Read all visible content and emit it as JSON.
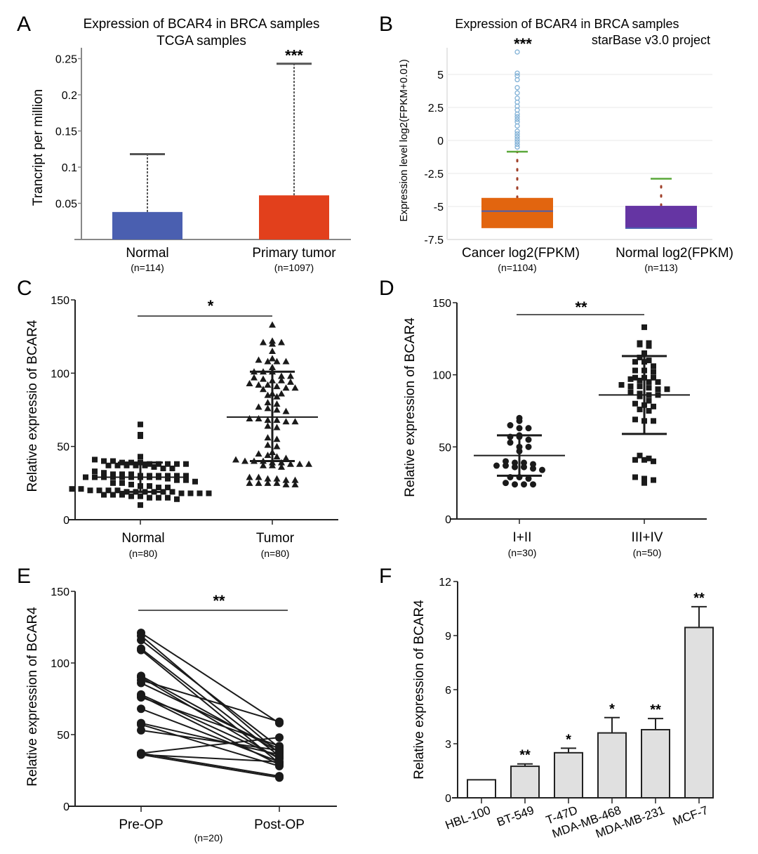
{
  "figure": {
    "panels": [
      "A",
      "B",
      "C",
      "D",
      "E",
      "F"
    ]
  },
  "chart_data": [
    {
      "panel": "A",
      "type": "bar",
      "title": "Expression of BCAR4 in BRCA samples",
      "subtitle": "TCGA samples",
      "xlabel": "",
      "ylabel": "Trancript per million",
      "ylim": [
        0,
        0.26
      ],
      "yticks": [
        "0.05",
        "0.1",
        "0.15",
        "0.2",
        "0.25"
      ],
      "ytick_values": [
        0.05,
        0.1,
        0.15,
        0.2,
        0.25
      ],
      "categories": [
        "Normal",
        "Primary tumor"
      ],
      "n_labels": [
        "(n=114)",
        "(n=1097)"
      ],
      "values": [
        0.038,
        0.061
      ],
      "whisker_top": [
        0.118,
        0.243
      ],
      "colors": [
        "#4a5fb0",
        "#e2401c"
      ],
      "significance": [
        "",
        "***"
      ],
      "grid": false
    },
    {
      "panel": "B",
      "type": "box",
      "title": "Expression of BCAR4 in BRCA samples",
      "subtitle": "starBase v3.0 project",
      "significance": "***",
      "ylabel": "Expression level log2(FPKM+0.01)",
      "ylim": [
        -7.5,
        7
      ],
      "yticks": [
        "5",
        "2.5",
        "0",
        "-2.5",
        "-5",
        "-7.5"
      ],
      "ytick_values": [
        5,
        2.5,
        0,
        -2.5,
        -5,
        -7.5
      ],
      "categories": [
        "Cancer log2(FPKM)",
        "Normal log2(FPKM)"
      ],
      "n_labels": [
        "(n=1104)",
        "(n=113)"
      ],
      "boxes": [
        {
          "q1": -6.64,
          "median": -5.35,
          "q3": -4.35,
          "whisker_low": -6.64,
          "whisker_high": -0.85,
          "color": "#e2650f",
          "outliers": [
            -0.5,
            -0.3,
            -0.1,
            0.1,
            0.3,
            0.5,
            0.7,
            1.1,
            1.4,
            1.6,
            1.8,
            2.0,
            2.3,
            2.6,
            2.9,
            3.2,
            3.6,
            4.0,
            4.6,
            4.9,
            5.1,
            6.7
          ]
        },
        {
          "q1": -6.64,
          "median": -6.64,
          "q3": -4.95,
          "whisker_low": -6.64,
          "whisker_high": -2.9,
          "color": "#6535a3",
          "outliers": []
        }
      ],
      "whisker_color": "#5aa83a",
      "grid": true
    },
    {
      "panel": "C",
      "type": "scatter",
      "title": "",
      "significance": "*",
      "ylabel": "Relative expressio of BCAR4",
      "ylim": [
        0,
        150
      ],
      "yticks": [
        "0",
        "50",
        "100",
        "150"
      ],
      "ytick_values": [
        0,
        50,
        100,
        150
      ],
      "categories": [
        "Normal",
        "Tumor"
      ],
      "n_labels": [
        "(n=80)",
        "(n=80)"
      ],
      "markers": [
        "square",
        "triangle"
      ],
      "series": [
        {
          "name": "Normal",
          "mean": 29,
          "sd_low": 19,
          "sd_high": 39,
          "values": [
            65,
            58,
            57,
            43,
            41,
            40,
            40,
            39,
            39,
            39,
            38,
            38,
            38,
            38,
            38,
            37,
            37,
            37,
            37,
            37,
            36,
            35,
            35,
            33,
            32,
            31,
            31,
            31,
            30,
            30,
            30,
            30,
            30,
            30,
            29,
            29,
            29,
            29,
            29,
            29,
            29,
            29,
            29,
            28,
            27,
            27,
            26,
            25,
            25,
            24,
            23,
            23,
            22,
            22,
            21,
            21,
            20,
            20,
            20,
            20,
            19,
            19,
            19,
            19,
            19,
            19,
            18,
            18,
            18,
            18,
            17,
            17,
            17,
            16,
            16,
            15,
            15,
            15,
            14,
            10
          ]
        },
        {
          "name": "Tumor",
          "mean": 70,
          "sd_low": 40,
          "sd_high": 101,
          "values": [
            133,
            122,
            121,
            120,
            121,
            115,
            110,
            109,
            108,
            108,
            108,
            104,
            101,
            101,
            101,
            98,
            98,
            97,
            96,
            95,
            95,
            94,
            93,
            92,
            92,
            91,
            90,
            90,
            89,
            86,
            86,
            85,
            84,
            80,
            79,
            77,
            76,
            75,
            74,
            69,
            69,
            68,
            68,
            67,
            67,
            64,
            63,
            56,
            55,
            51,
            50,
            46,
            45,
            44,
            43,
            42,
            41,
            40,
            40,
            40,
            39,
            39,
            38,
            38,
            38,
            37,
            37,
            36,
            29,
            29,
            28,
            28,
            27,
            27,
            25,
            25,
            25,
            25,
            24,
            24
          ]
        }
      ],
      "grid": false
    },
    {
      "panel": "D",
      "type": "scatter",
      "title": "",
      "significance": "**",
      "ylabel": "Relative expression of BCAR4",
      "ylim": [
        0,
        150
      ],
      "yticks": [
        "0",
        "50",
        "100",
        "150"
      ],
      "ytick_values": [
        0,
        50,
        100,
        150
      ],
      "categories": [
        "I+II",
        "III+IV"
      ],
      "n_labels": [
        "(n=30)",
        "(n=50)"
      ],
      "markers": [
        "circle",
        "square"
      ],
      "series": [
        {
          "name": "I+II",
          "mean": 44,
          "sd_low": 30,
          "sd_high": 58,
          "values": [
            70,
            68,
            65,
            63,
            63,
            58,
            57,
            57,
            55,
            53,
            50,
            50,
            47,
            40,
            39,
            39,
            38,
            37,
            37,
            36,
            36,
            35,
            34,
            29,
            29,
            28,
            25,
            24,
            24,
            24
          ]
        },
        {
          "name": "III+IV",
          "mean": 86,
          "sd_low": 59,
          "sd_high": 113,
          "values": [
            133,
            122,
            122,
            121,
            120,
            115,
            112,
            110,
            109,
            109,
            106,
            103,
            103,
            102,
            98,
            98,
            98,
            97,
            96,
            95,
            95,
            93,
            92,
            92,
            91,
            90,
            90,
            88,
            87,
            86,
            86,
            85,
            82,
            80,
            79,
            78,
            76,
            75,
            69,
            68,
            68,
            44,
            42,
            41,
            41,
            40,
            29,
            28,
            27,
            25
          ]
        }
      ],
      "grid": false
    },
    {
      "panel": "E",
      "type": "line",
      "title": "",
      "significance": "**",
      "ylabel": "Relative expression of BCAR4",
      "ylim": [
        0,
        150
      ],
      "yticks": [
        "0",
        "50",
        "100",
        "150"
      ],
      "ytick_values": [
        0,
        50,
        100,
        150
      ],
      "categories": [
        "Pre-OP",
        "Post-OP"
      ],
      "n_label": "(n=20)",
      "pairs": [
        [
          121,
          58
        ],
        [
          119,
          37
        ],
        [
          116,
          41
        ],
        [
          110,
          35
        ],
        [
          109,
          30
        ],
        [
          91,
          38
        ],
        [
          90,
          33
        ],
        [
          88,
          59
        ],
        [
          86,
          40
        ],
        [
          78,
          34
        ],
        [
          77,
          29
        ],
        [
          76,
          42
        ],
        [
          68,
          31
        ],
        [
          58,
          36
        ],
        [
          57,
          28
        ],
        [
          53,
          39
        ],
        [
          37,
          48
        ],
        [
          37,
          21
        ],
        [
          36,
          31
        ],
        [
          36,
          20
        ]
      ],
      "grid": false
    },
    {
      "panel": "F",
      "type": "bar",
      "title": "",
      "xlabel": "",
      "ylabel": "Relative expression of BCAR4",
      "ylim": [
        0,
        12
      ],
      "yticks": [
        "0",
        "3",
        "6",
        "9",
        "12"
      ],
      "ytick_values": [
        0,
        3,
        6,
        9,
        12
      ],
      "categories": [
        "HBL-100",
        "BT-549",
        "T-47D",
        "MDA-MB-468",
        "MDA-MB-231",
        "MCF-7"
      ],
      "values": [
        1.0,
        1.75,
        2.5,
        3.6,
        3.78,
        9.45
      ],
      "error_upper": [
        1.0,
        1.88,
        2.75,
        4.45,
        4.4,
        10.6
      ],
      "significance": [
        "",
        "**",
        "*",
        "*",
        "**",
        "**"
      ],
      "colors": [
        "#ffffff",
        "#e0e0e0",
        "#e0e0e0",
        "#e0e0e0",
        "#e0e0e0",
        "#e0e0e0"
      ],
      "grid": false
    }
  ]
}
